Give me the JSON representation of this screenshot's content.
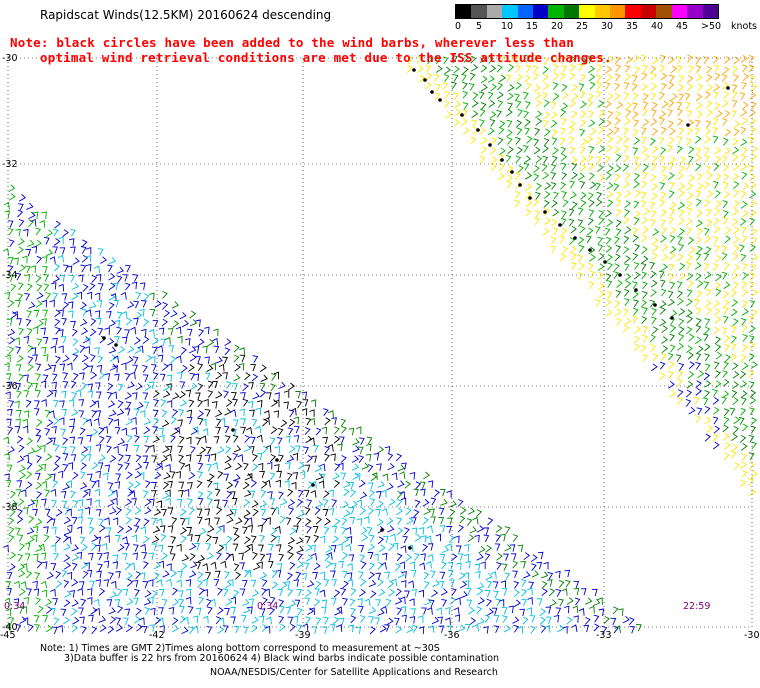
{
  "header": {
    "title": "Rapidscat Winds(12.5KM) 20160624 descending",
    "note_line1": "Note: black circles have been added to the wind barbs, wherever less than",
    "note_line2": "optimal wind retrieval conditions are met due to the ISS attitude changes."
  },
  "legend": {
    "unit_label": "knots",
    "ticks": [
      "0",
      "5",
      "10",
      "15",
      "20",
      "25",
      "30",
      "35",
      "40",
      "45",
      ">50"
    ],
    "colors": [
      "#000000",
      "#555555",
      "#aaaaaa",
      "#00c8ff",
      "#0064ff",
      "#0000c8",
      "#00b400",
      "#007800",
      "#ffff00",
      "#ffc800",
      "#ff9600",
      "#ff0000",
      "#c80000",
      "#a05000",
      "#ff00ff",
      "#9600c8",
      "#500096"
    ]
  },
  "axes": {
    "lat_labels": [
      "-30",
      "-32",
      "-34",
      "-36",
      "-38",
      "-40"
    ],
    "lon_labels": [
      "-45",
      "-42",
      "-39",
      "-36",
      "-33",
      "-30"
    ]
  },
  "times": {
    "left": "0:34",
    "mid": "0:34",
    "right": "22:59"
  },
  "footer": {
    "line1": "Note: 1) Times are GMT 2)Times along bottom correspond to measurement at ~30S",
    "line2": "3)Data buffer is 22 hrs from 20160624 4) Black wind barbs indicate possible contamination",
    "line3": "NOAA/NESDIS/Center for Satellite Applications and Research"
  },
  "palette": {
    "yellow": "#ffe600",
    "orange": "#ffa500",
    "green": "#00b000",
    "darkgreen": "#008000",
    "blue": "#0000d0",
    "cyan": "#00c0e0",
    "black": "#000000"
  }
}
